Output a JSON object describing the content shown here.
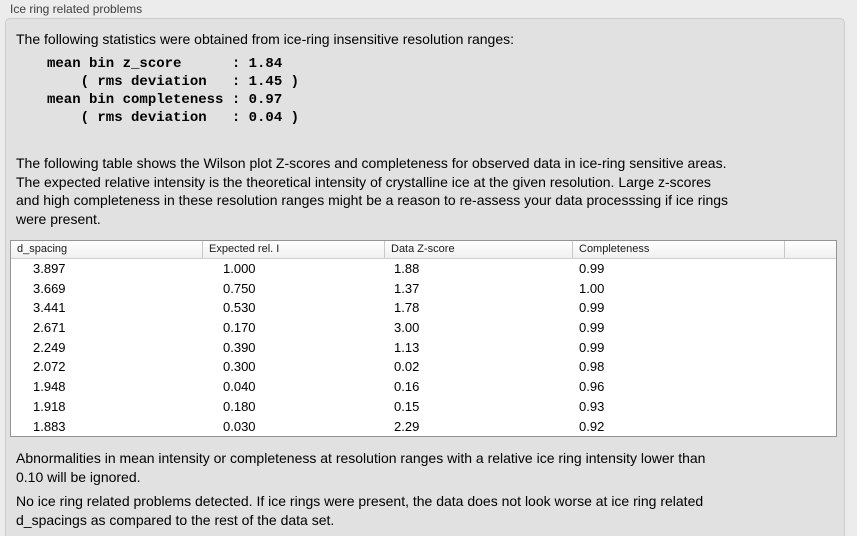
{
  "panel": {
    "title": "Ice ring related problems"
  },
  "intro": {
    "text": "The following statistics were obtained from ice-ring insensitive resolution ranges:"
  },
  "stats_block": {
    "lines": [
      "mean bin z_score      : 1.84",
      "    ( rms deviation   : 1.45 )",
      "mean bin completeness : 0.97",
      "    ( rms deviation   : 0.04 )"
    ]
  },
  "description": {
    "lines": [
      "The following table shows the Wilson plot Z-scores and completeness for observed data in ice-ring sensitive areas.",
      "The expected relative intensity is the theoretical intensity of crystalline ice at the given resolution. Large z-scores",
      "and high completeness in these resolution ranges might be a reason to re-assess your data processsing if ice rings",
      "were present."
    ]
  },
  "table": {
    "headers": [
      "d_spacing",
      "Expected rel. I",
      "Data Z-score",
      "Completeness"
    ],
    "rows": [
      [
        "3.897",
        "1.000",
        "1.88",
        "0.99"
      ],
      [
        "3.669",
        "0.750",
        "1.37",
        "1.00"
      ],
      [
        "3.441",
        "0.530",
        "1.78",
        "0.99"
      ],
      [
        "2.671",
        "0.170",
        "3.00",
        "0.99"
      ],
      [
        "2.249",
        "0.390",
        "1.13",
        "0.99"
      ],
      [
        "2.072",
        "0.300",
        "0.02",
        "0.98"
      ],
      [
        "1.948",
        "0.040",
        "0.16",
        "0.96"
      ],
      [
        "1.918",
        "0.180",
        "0.15",
        "0.93"
      ],
      [
        "1.883",
        "0.030",
        "2.29",
        "0.92"
      ]
    ]
  },
  "notes": {
    "ignore_lines": [
      "Abnormalities in mean intensity or completeness at resolution ranges with a relative ice ring intensity lower than",
      "0.10 will be ignored."
    ],
    "conclusion_lines": [
      "No ice ring related problems detected. If ice rings were present, the data does not look worse at ice ring related",
      "d_spacings as compared to the rest of the data set."
    ]
  },
  "colors": {
    "window_background": "#ececec",
    "panel_background": "#e1e1e1",
    "table_border": "#949494",
    "header_separator": "#c8c8c8"
  }
}
